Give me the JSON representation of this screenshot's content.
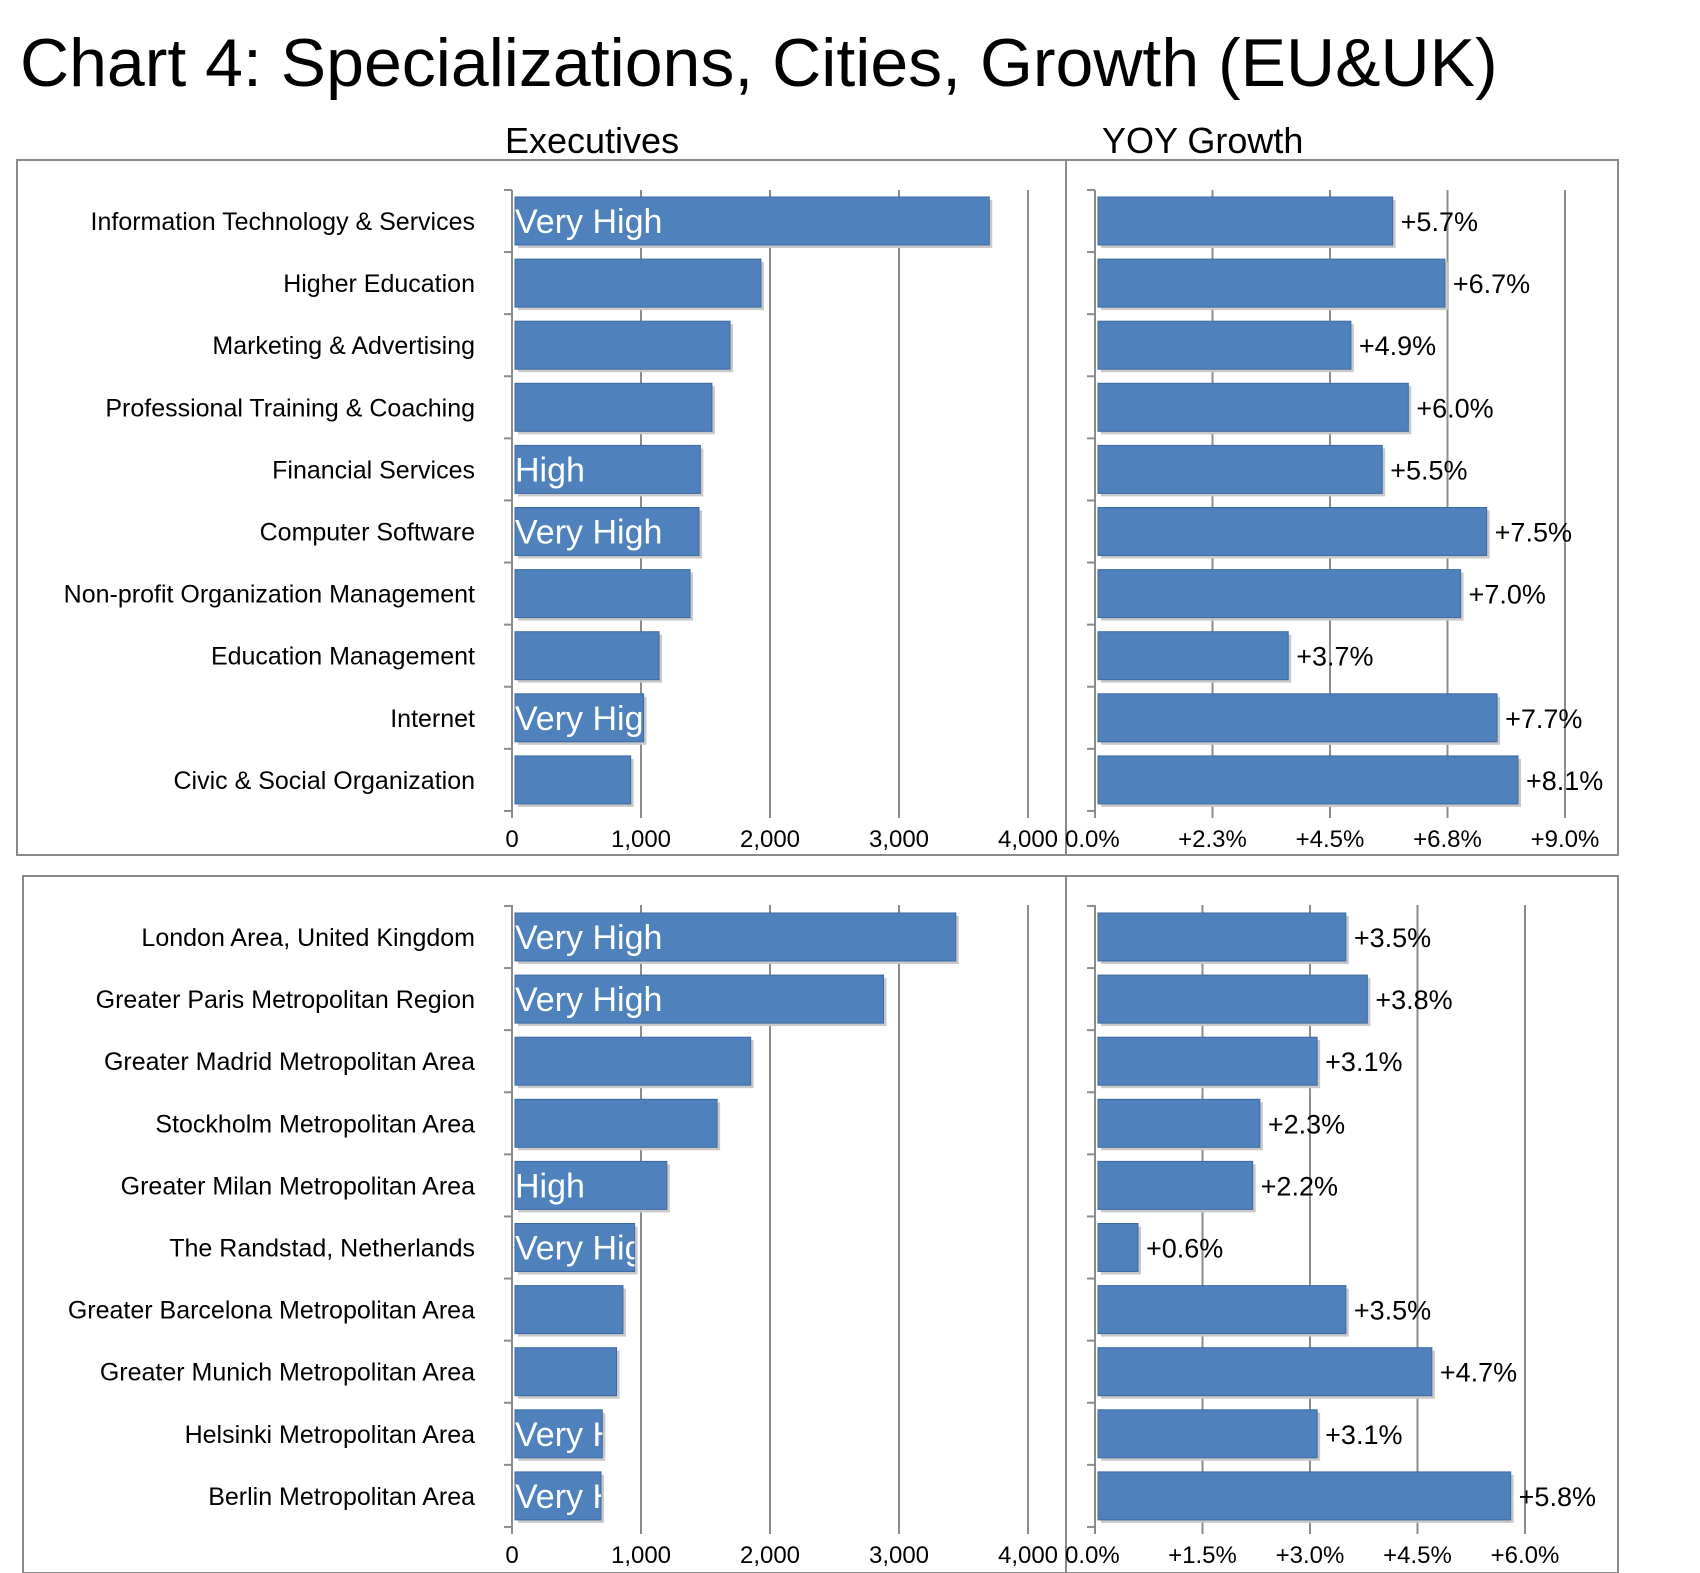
{
  "title": "Chart 4: Specializations, Cities, Growth (EU&UK)",
  "column_headers": {
    "left": "Executives",
    "right": "YOY Growth"
  },
  "colors": {
    "bar": "#4f81bd",
    "bar_edge": "#3d6aa0",
    "grid": "#8c8c8c",
    "frame": "#8a8a8a"
  },
  "chart_data": [
    {
      "type": "bar",
      "orientation": "horizontal",
      "title": "",
      "xlabel": "Executives",
      "categories": [
        "Information Technology & Services",
        "Higher Education",
        "Marketing & Advertising",
        "Professional Training & Coaching",
        "Financial Services",
        "Computer Software",
        "Non-profit Organization Management",
        "Education Management",
        "Internet",
        "Civic & Social Organization"
      ],
      "values": [
        3700,
        1930,
        1690,
        1550,
        1460,
        1450,
        1380,
        1140,
        1020,
        920
      ],
      "inside_labels": [
        "Very High",
        "",
        "",
        "",
        "High",
        "Very High",
        "",
        "",
        "Very High",
        ""
      ],
      "xlim": [
        0,
        4000
      ],
      "ticks": [
        0,
        1000,
        2000,
        3000,
        4000
      ],
      "tick_labels": [
        "0",
        "1,000",
        "2,000",
        "3,000",
        "4,000"
      ],
      "grid": true
    },
    {
      "type": "bar",
      "orientation": "horizontal",
      "title": "",
      "xlabel": "YOY Growth",
      "categories": [
        "Information Technology & Services",
        "Higher Education",
        "Marketing & Advertising",
        "Professional Training & Coaching",
        "Financial Services",
        "Computer Software",
        "Non-profit Organization Management",
        "Education Management",
        "Internet",
        "Civic & Social Organization"
      ],
      "values": [
        5.7,
        6.7,
        4.9,
        6.0,
        5.5,
        7.5,
        7.0,
        3.7,
        7.7,
        8.1
      ],
      "data_labels": [
        "+5.7%",
        "+6.7%",
        "+4.9%",
        "+6.0%",
        "+5.5%",
        "+7.5%",
        "+7.0%",
        "+3.7%",
        "+7.7%",
        "+8.1%"
      ],
      "xlim": [
        0,
        9.0
      ],
      "ticks": [
        0,
        2.25,
        4.5,
        6.75,
        9.0
      ],
      "tick_labels": [
        "0.0%",
        "+2.3%",
        "+4.5%",
        "+6.8%",
        "+9.0%"
      ],
      "grid": true
    },
    {
      "type": "bar",
      "orientation": "horizontal",
      "title": "",
      "xlabel": "Executives",
      "categories": [
        "London Area, United Kingdom",
        "Greater Paris Metropolitan Region",
        "Greater Madrid Metropolitan Area",
        "Stockholm Metropolitan Area",
        "Greater Milan Metropolitan Area",
        "The Randstad, Netherlands",
        "Greater Barcelona Metropolitan Area",
        "Greater Munich Metropolitan Area",
        "Helsinki Metropolitan Area",
        "Berlin Metropolitan Area"
      ],
      "values": [
        3440,
        2880,
        1850,
        1590,
        1200,
        950,
        860,
        810,
        700,
        690
      ],
      "inside_labels": [
        "Very High",
        "Very High",
        "",
        "",
        "High",
        "Very High",
        "",
        "",
        "Very High",
        "Very High"
      ],
      "xlim": [
        0,
        4000
      ],
      "ticks": [
        0,
        1000,
        2000,
        3000,
        4000
      ],
      "tick_labels": [
        "0",
        "1,000",
        "2,000",
        "3,000",
        "4,000"
      ],
      "grid": true
    },
    {
      "type": "bar",
      "orientation": "horizontal",
      "title": "",
      "xlabel": "YOY Growth",
      "categories": [
        "London Area, United Kingdom",
        "Greater Paris Metropolitan Region",
        "Greater Madrid Metropolitan Area",
        "Stockholm Metropolitan Area",
        "Greater Milan Metropolitan Area",
        "The Randstad, Netherlands",
        "Greater Barcelona Metropolitan Area",
        "Greater Munich Metropolitan Area",
        "Helsinki Metropolitan Area",
        "Berlin Metropolitan Area"
      ],
      "values": [
        3.5,
        3.8,
        3.1,
        2.3,
        2.2,
        0.6,
        3.5,
        4.7,
        3.1,
        5.8
      ],
      "data_labels": [
        "+3.5%",
        "+3.8%",
        "+3.1%",
        "+2.3%",
        "+2.2%",
        "+0.6%",
        "+3.5%",
        "+4.7%",
        "+3.1%",
        "+5.8%"
      ],
      "xlim": [
        0,
        6.0
      ],
      "ticks": [
        0,
        1.5,
        3.0,
        4.5,
        6.0
      ],
      "tick_labels": [
        "0.0%",
        "+1.5%",
        "+3.0%",
        "+4.5%",
        "+6.0%"
      ],
      "grid": true
    }
  ]
}
